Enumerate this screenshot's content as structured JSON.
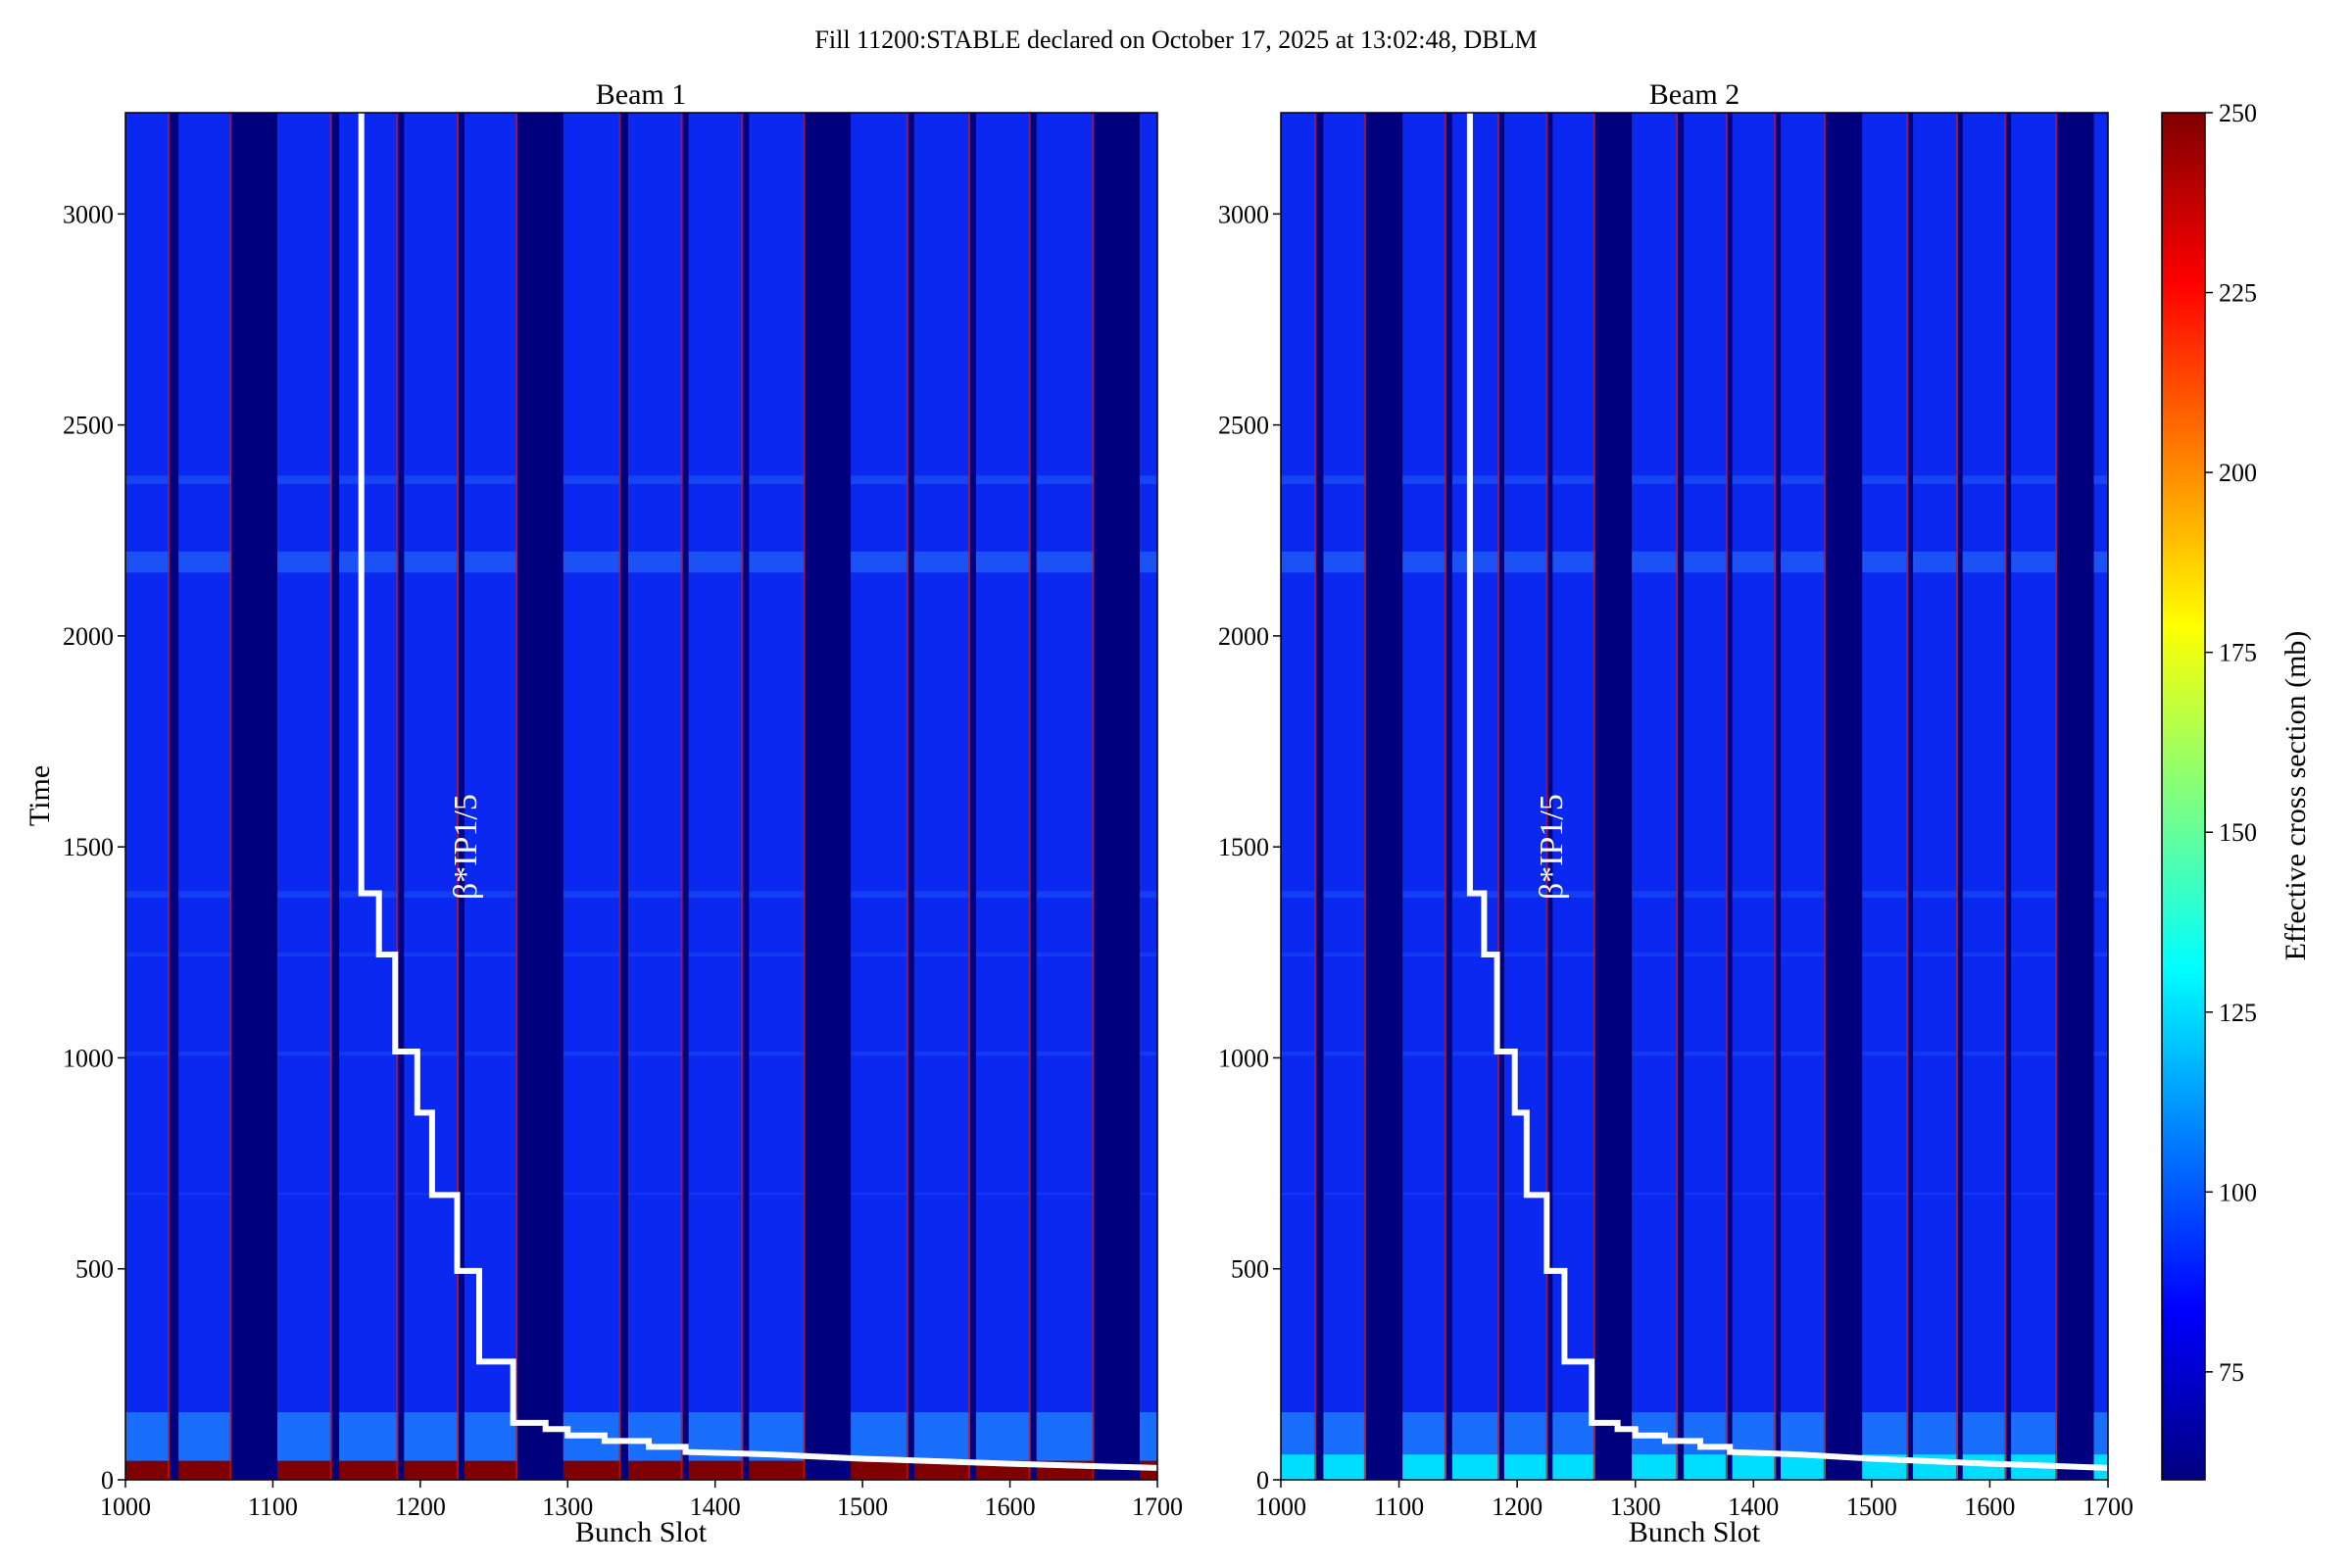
{
  "title": "Fill 11200:STABLE declared on October 17, 2025 at 13:02:48, DBLM",
  "chart_data": [
    {
      "type": "heatmap",
      "title": "Beam 1",
      "xlabel": "Bunch Slot",
      "ylabel": "Time",
      "xlim": [
        1000,
        1700
      ],
      "ylim": [
        0,
        3240
      ],
      "xticks": [
        "1000",
        "1100",
        "1200",
        "1300",
        "1400",
        "1500",
        "1600",
        "1700"
      ],
      "yticks": [
        "0",
        "500",
        "1000",
        "1500",
        "2000",
        "2500",
        "3000"
      ],
      "gaps": [
        [
          1030,
          1036
        ],
        [
          1072,
          1103
        ],
        [
          1140,
          1145
        ],
        [
          1185,
          1189
        ],
        [
          1226,
          1230
        ],
        [
          1266,
          1297
        ],
        [
          1336,
          1341
        ],
        [
          1378,
          1382
        ],
        [
          1419,
          1423
        ],
        [
          1461,
          1492
        ],
        [
          1531,
          1535
        ],
        [
          1573,
          1577
        ],
        [
          1614,
          1618
        ],
        [
          1657,
          1688
        ]
      ],
      "low_band_value": 250,
      "low_band_tmax": 45,
      "beta_label": "β*IP1/5",
      "beta_star_step_line": [
        {
          "x": 1160,
          "y": 3240
        },
        {
          "x": 1160,
          "y": 1390
        },
        {
          "x": 1172,
          "y": 1390
        },
        {
          "x": 1172,
          "y": 1245
        },
        {
          "x": 1183,
          "y": 1245
        },
        {
          "x": 1183,
          "y": 1015
        },
        {
          "x": 1198,
          "y": 1015
        },
        {
          "x": 1198,
          "y": 870
        },
        {
          "x": 1208,
          "y": 870
        },
        {
          "x": 1208,
          "y": 675
        },
        {
          "x": 1225,
          "y": 675
        },
        {
          "x": 1225,
          "y": 495
        },
        {
          "x": 1240,
          "y": 495
        },
        {
          "x": 1240,
          "y": 280
        },
        {
          "x": 1263,
          "y": 280
        },
        {
          "x": 1263,
          "y": 135
        },
        {
          "x": 1285,
          "y": 135
        },
        {
          "x": 1285,
          "y": 120
        },
        {
          "x": 1300,
          "y": 120
        },
        {
          "x": 1300,
          "y": 105
        },
        {
          "x": 1325,
          "y": 105
        },
        {
          "x": 1325,
          "y": 92
        },
        {
          "x": 1355,
          "y": 92
        },
        {
          "x": 1355,
          "y": 78
        },
        {
          "x": 1380,
          "y": 78
        },
        {
          "x": 1380,
          "y": 66
        },
        {
          "x": 1440,
          "y": 60
        },
        {
          "x": 1500,
          "y": 50
        },
        {
          "x": 1600,
          "y": 38
        },
        {
          "x": 1700,
          "y": 28
        }
      ]
    },
    {
      "type": "heatmap",
      "title": "Beam 2",
      "xlabel": "Bunch Slot",
      "xlim": [
        1000,
        1700
      ],
      "ylim": [
        0,
        3240
      ],
      "xticks": [
        "1000",
        "1100",
        "1200",
        "1300",
        "1400",
        "1500",
        "1600",
        "1700"
      ],
      "yticks": [
        "0",
        "500",
        "1000",
        "1500",
        "2000",
        "2500",
        "3000"
      ],
      "gaps": [
        [
          1030,
          1036
        ],
        [
          1072,
          1103
        ],
        [
          1140,
          1145
        ],
        [
          1185,
          1189
        ],
        [
          1226,
          1230
        ],
        [
          1266,
          1297
        ],
        [
          1336,
          1341
        ],
        [
          1378,
          1382
        ],
        [
          1419,
          1423
        ],
        [
          1461,
          1492
        ],
        [
          1531,
          1535
        ],
        [
          1573,
          1577
        ],
        [
          1614,
          1618
        ],
        [
          1657,
          1688
        ]
      ],
      "low_band_value": 125,
      "low_band_tmax": 60,
      "beta_label": "β*IP1/5",
      "beta_star_step_line": [
        {
          "x": 1160,
          "y": 3240
        },
        {
          "x": 1160,
          "y": 1390
        },
        {
          "x": 1172,
          "y": 1390
        },
        {
          "x": 1172,
          "y": 1245
        },
        {
          "x": 1183,
          "y": 1245
        },
        {
          "x": 1183,
          "y": 1015
        },
        {
          "x": 1198,
          "y": 1015
        },
        {
          "x": 1198,
          "y": 870
        },
        {
          "x": 1208,
          "y": 870
        },
        {
          "x": 1208,
          "y": 675
        },
        {
          "x": 1225,
          "y": 675
        },
        {
          "x": 1225,
          "y": 495
        },
        {
          "x": 1240,
          "y": 495
        },
        {
          "x": 1240,
          "y": 280
        },
        {
          "x": 1263,
          "y": 280
        },
        {
          "x": 1263,
          "y": 135
        },
        {
          "x": 1285,
          "y": 135
        },
        {
          "x": 1285,
          "y": 120
        },
        {
          "x": 1300,
          "y": 120
        },
        {
          "x": 1300,
          "y": 105
        },
        {
          "x": 1325,
          "y": 105
        },
        {
          "x": 1325,
          "y": 92
        },
        {
          "x": 1355,
          "y": 92
        },
        {
          "x": 1355,
          "y": 78
        },
        {
          "x": 1380,
          "y": 78
        },
        {
          "x": 1380,
          "y": 66
        },
        {
          "x": 1440,
          "y": 60
        },
        {
          "x": 1500,
          "y": 50
        },
        {
          "x": 1600,
          "y": 38
        },
        {
          "x": 1700,
          "y": 28
        }
      ]
    }
  ],
  "colorbar": {
    "label": "Effective cross section (mb)",
    "range": [
      60,
      250
    ],
    "ticks": [
      "75",
      "100",
      "125",
      "150",
      "175",
      "200",
      "225",
      "250"
    ],
    "colormap": "jet",
    "stops": [
      "#00007f",
      "#0000ff",
      "#007fff",
      "#00ffff",
      "#7fff7f",
      "#ffff00",
      "#ff7f00",
      "#ff0000",
      "#7f0000"
    ]
  },
  "colors": {
    "background_gap": "#00007f",
    "train": "#0a28f0",
    "beta_line": "#ffffff"
  }
}
